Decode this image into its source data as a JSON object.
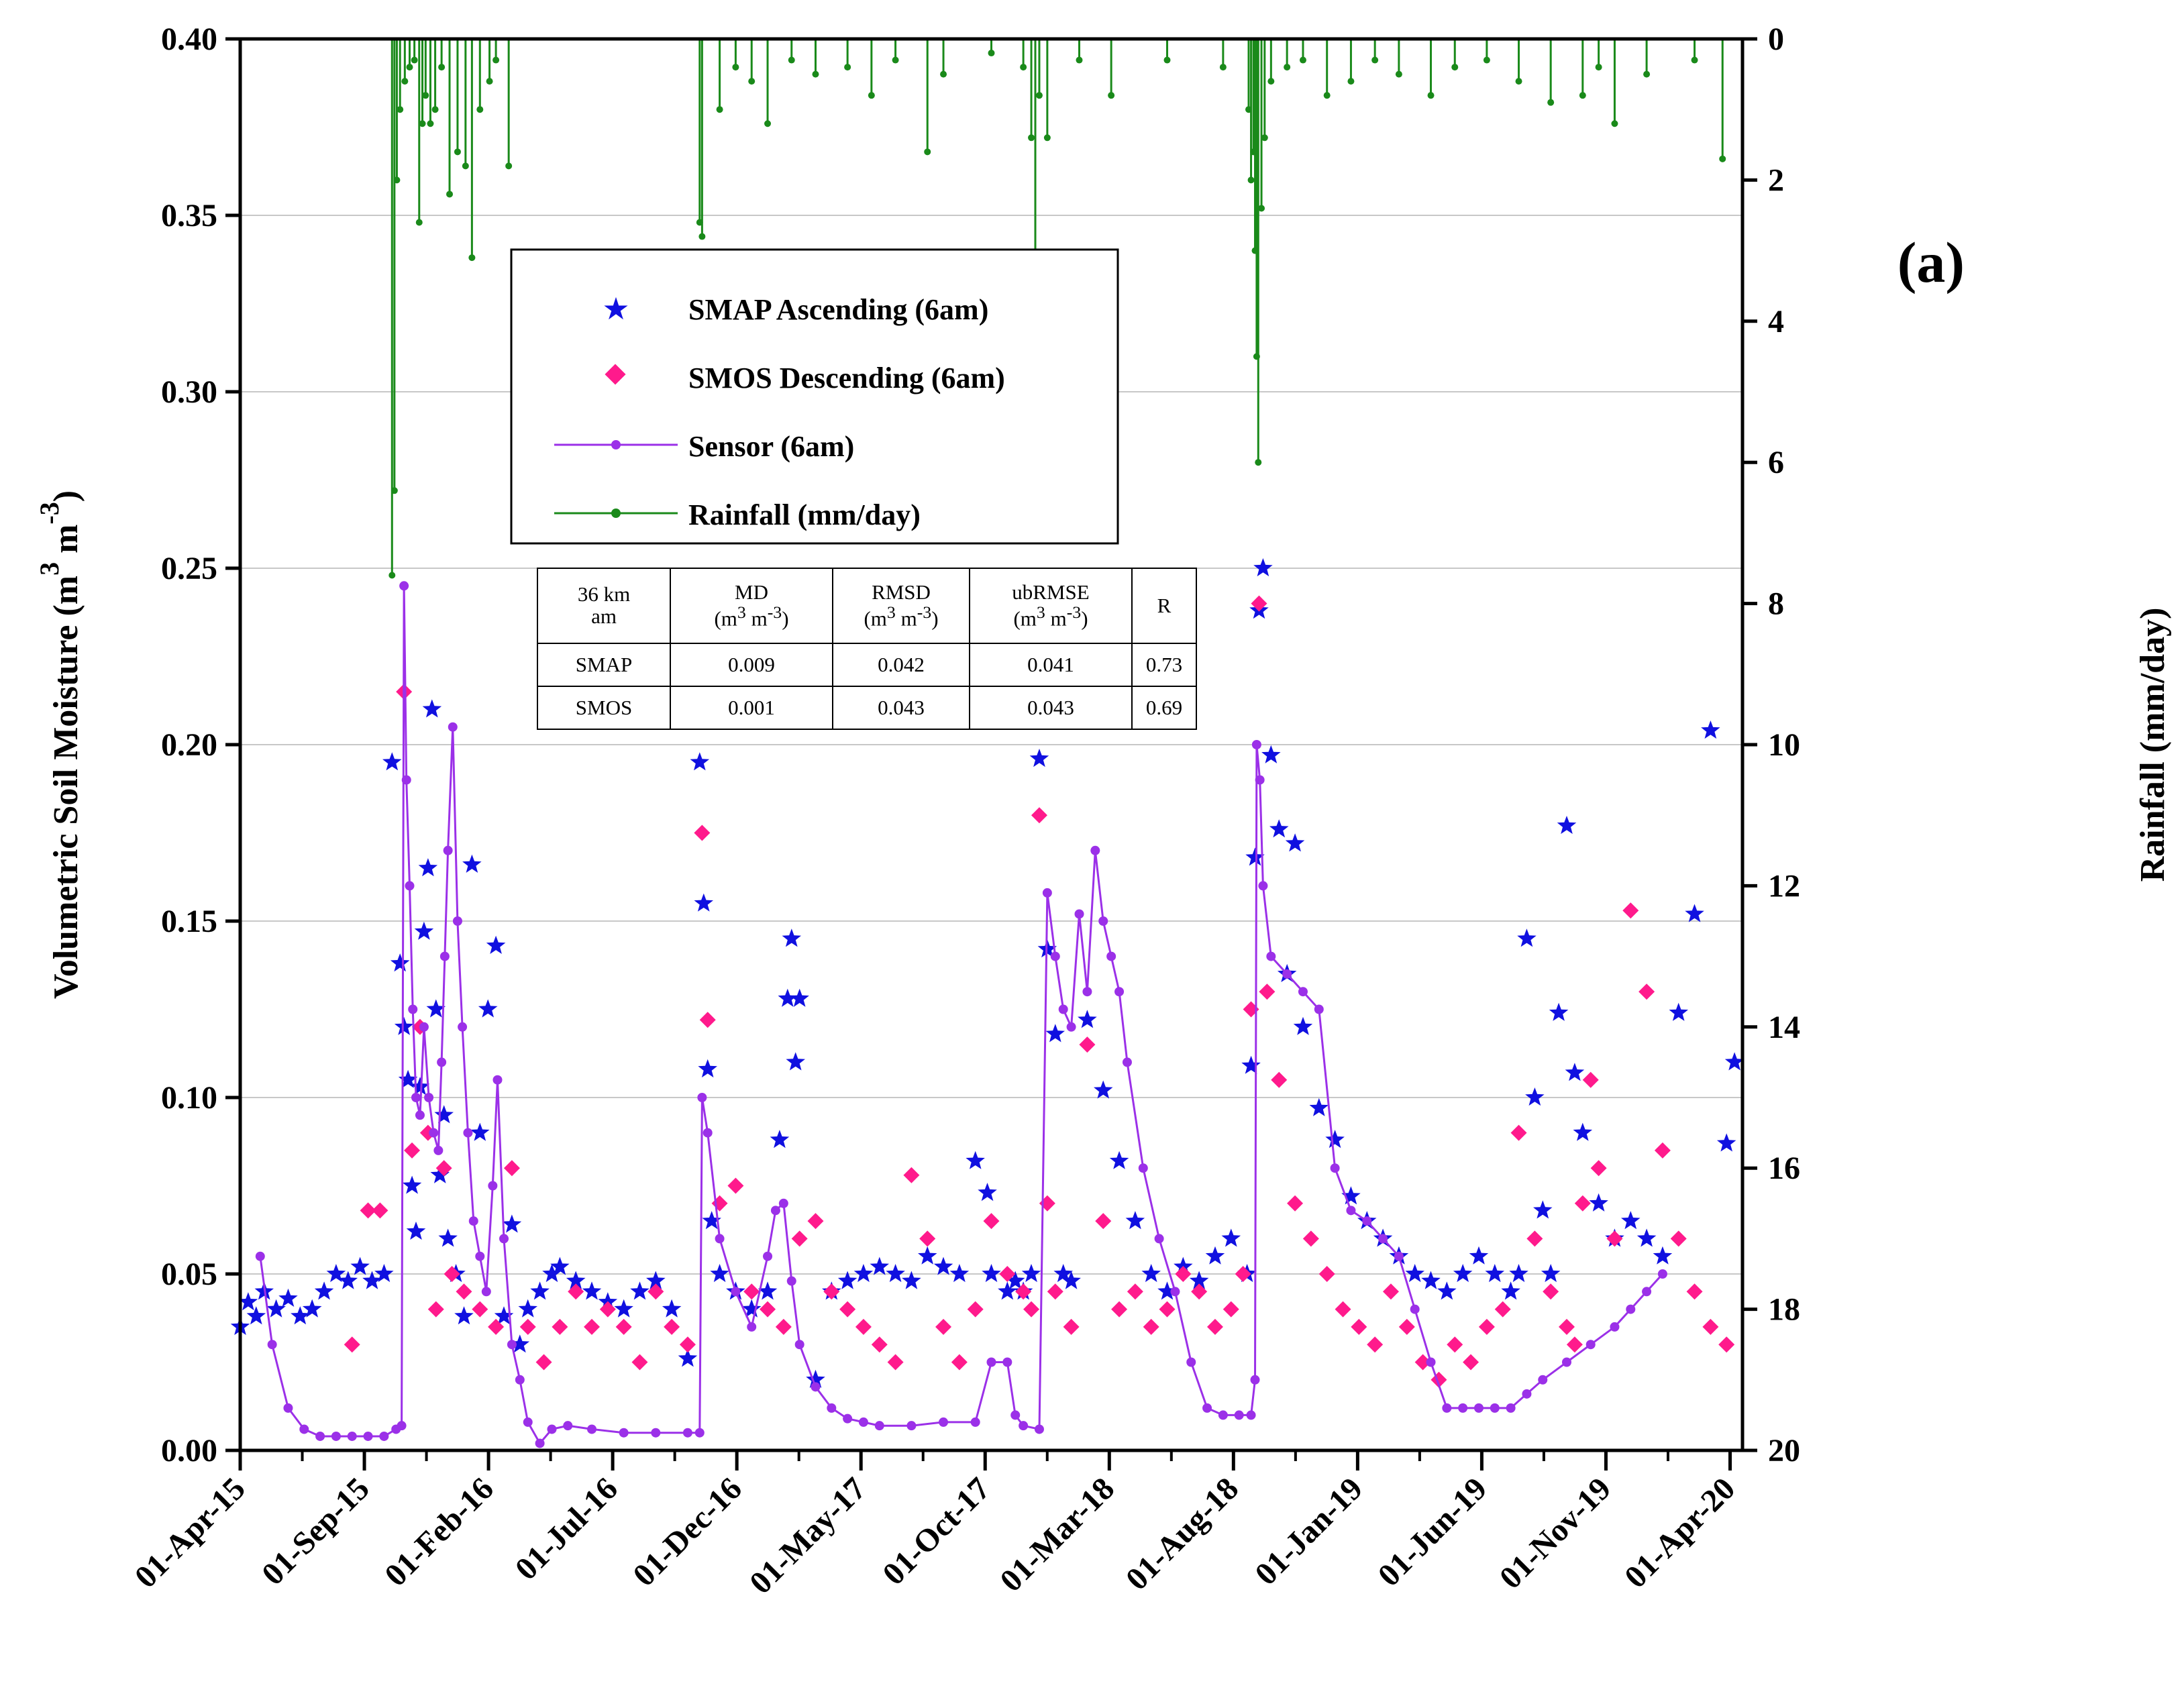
{
  "chart_data": {
    "type": "scatter",
    "panel_label": "(a)",
    "ylabel": "Volumetric Soil Moisture (m",
    "ylabel_sup_3": "3",
    "ylabel_mid": " m",
    "ylabel_sup_neg3": "-3",
    "ylabel_close": ")",
    "y2label": "Rainfall (mm/day)",
    "ylim": [
      0,
      0.4
    ],
    "y2lim": [
      0,
      20
    ],
    "y_ticks": [
      "0.00",
      "0.05",
      "0.10",
      "0.15",
      "0.20",
      "0.25",
      "0.30",
      "0.35",
      "0.40"
    ],
    "y2_ticks": [
      "0",
      "2",
      "4",
      "6",
      "8",
      "10",
      "12",
      "14",
      "16",
      "18",
      "20"
    ],
    "x_tick_labels": [
      "01-Apr-15",
      "01-Sep-15",
      "01-Feb-16",
      "01-Jul-16",
      "01-Dec-16",
      "01-May-17",
      "01-Oct-17",
      "01-Mar-18",
      "01-Aug-18",
      "01-Jan-19",
      "01-Jun-19",
      "01-Nov-19",
      "01-Apr-20"
    ],
    "x_range_days": [
      0,
      1880
    ],
    "grid": "horizontal",
    "legend_position": "upper-left",
    "legend": [
      {
        "label": "SMAP Ascending (6am)",
        "marker": "star",
        "color": "#1010e0"
      },
      {
        "label": "SMOS Descending (6am)",
        "marker": "diamond",
        "color": "#ff1a8c"
      },
      {
        "label": "Sensor (6am)",
        "marker": "line-dot",
        "color": "#9b30e8"
      },
      {
        "label": "Rainfall (mm/day)",
        "marker": "line-dot",
        "color": "#1a8a1a"
      }
    ],
    "series": [
      {
        "name": "SMAP Ascending (6am)",
        "color": "#1010e0",
        "axis": "left",
        "marker": "star",
        "x_days": [
          0,
          10,
          20,
          30,
          45,
          60,
          75,
          90,
          105,
          120,
          135,
          150,
          165,
          180,
          190,
          200,
          205,
          210,
          215,
          220,
          225,
          230,
          235,
          240,
          245,
          250,
          255,
          260,
          270,
          280,
          290,
          300,
          310,
          320,
          330,
          340,
          350,
          360,
          375,
          390,
          400,
          420,
          440,
          460,
          480,
          500,
          520,
          540,
          560,
          575,
          580,
          585,
          590,
          600,
          620,
          640,
          660,
          675,
          685,
          690,
          695,
          700,
          720,
          740,
          760,
          780,
          800,
          820,
          840,
          860,
          880,
          900,
          920,
          935,
          940,
          960,
          970,
          980,
          990,
          1000,
          1010,
          1020,
          1030,
          1040,
          1060,
          1080,
          1100,
          1120,
          1140,
          1160,
          1180,
          1200,
          1220,
          1240,
          1260,
          1265,
          1270,
          1275,
          1280,
          1290,
          1300,
          1310,
          1320,
          1330,
          1350,
          1370,
          1390,
          1410,
          1430,
          1450,
          1470,
          1490,
          1510,
          1530,
          1550,
          1570,
          1590,
          1600,
          1610,
          1620,
          1630,
          1640,
          1650,
          1660,
          1670,
          1680,
          1700,
          1720,
          1740,
          1760,
          1780,
          1800,
          1820,
          1840,
          1860,
          1870
        ],
        "values": [
          0.035,
          0.042,
          0.038,
          0.045,
          0.04,
          0.043,
          0.038,
          0.04,
          0.045,
          0.05,
          0.048,
          0.052,
          0.048,
          0.05,
          0.195,
          0.138,
          0.12,
          0.105,
          0.075,
          0.062,
          0.103,
          0.147,
          0.165,
          0.21,
          0.125,
          0.078,
          0.095,
          0.06,
          0.05,
          0.038,
          0.166,
          0.09,
          0.125,
          0.143,
          0.038,
          0.064,
          0.03,
          0.04,
          0.045,
          0.05,
          0.052,
          0.048,
          0.045,
          0.042,
          0.04,
          0.045,
          0.048,
          0.04,
          0.026,
          0.195,
          0.155,
          0.108,
          0.065,
          0.05,
          0.045,
          0.04,
          0.045,
          0.088,
          0.128,
          0.145,
          0.11,
          0.128,
          0.02,
          0.045,
          0.048,
          0.05,
          0.052,
          0.05,
          0.048,
          0.055,
          0.052,
          0.05,
          0.082,
          0.073,
          0.05,
          0.045,
          0.048,
          0.045,
          0.05,
          0.196,
          0.142,
          0.118,
          0.05,
          0.048,
          0.122,
          0.102,
          0.082,
          0.065,
          0.05,
          0.045,
          0.052,
          0.048,
          0.055,
          0.06,
          0.05,
          0.109,
          0.168,
          0.238,
          0.25,
          0.197,
          0.176,
          0.135,
          0.172,
          0.12,
          0.097,
          0.088,
          0.072,
          0.065,
          0.06,
          0.055,
          0.05,
          0.048,
          0.045,
          0.05,
          0.055,
          0.05,
          0.045,
          0.05,
          0.145,
          0.1,
          0.068,
          0.05,
          0.124,
          0.177,
          0.107,
          0.09,
          0.07,
          0.06,
          0.065,
          0.06,
          0.055,
          0.124,
          0.152,
          0.204,
          0.087,
          0.11
        ]
      },
      {
        "name": "SMOS Descending (6am)",
        "color": "#ff1a8c",
        "axis": "left",
        "marker": "diamond",
        "x_days": [
          140,
          160,
          175,
          205,
          215,
          225,
          235,
          245,
          255,
          265,
          280,
          300,
          320,
          340,
          360,
          380,
          400,
          420,
          440,
          460,
          480,
          500,
          520,
          540,
          560,
          578,
          585,
          600,
          620,
          640,
          660,
          680,
          700,
          720,
          740,
          760,
          780,
          800,
          820,
          840,
          860,
          880,
          900,
          920,
          940,
          960,
          980,
          990,
          1000,
          1010,
          1020,
          1040,
          1060,
          1080,
          1100,
          1120,
          1140,
          1160,
          1180,
          1200,
          1220,
          1240,
          1255,
          1265,
          1275,
          1285,
          1300,
          1320,
          1340,
          1360,
          1380,
          1400,
          1420,
          1440,
          1460,
          1480,
          1500,
          1520,
          1540,
          1560,
          1580,
          1600,
          1620,
          1640,
          1660,
          1670,
          1680,
          1690,
          1700,
          1720,
          1740,
          1760,
          1780,
          1800,
          1820,
          1840,
          1860
        ],
        "values": [
          0.03,
          0.068,
          0.068,
          0.215,
          0.085,
          0.12,
          0.09,
          0.04,
          0.08,
          0.05,
          0.045,
          0.04,
          0.035,
          0.08,
          0.035,
          0.025,
          0.035,
          0.045,
          0.035,
          0.04,
          0.035,
          0.025,
          0.045,
          0.035,
          0.03,
          0.175,
          0.122,
          0.07,
          0.075,
          0.045,
          0.04,
          0.035,
          0.06,
          0.065,
          0.045,
          0.04,
          0.035,
          0.03,
          0.025,
          0.078,
          0.06,
          0.035,
          0.025,
          0.04,
          0.065,
          0.05,
          0.045,
          0.04,
          0.18,
          0.07,
          0.045,
          0.035,
          0.115,
          0.065,
          0.04,
          0.045,
          0.035,
          0.04,
          0.05,
          0.045,
          0.035,
          0.04,
          0.05,
          0.125,
          0.24,
          0.13,
          0.105,
          0.07,
          0.06,
          0.05,
          0.04,
          0.035,
          0.03,
          0.045,
          0.035,
          0.025,
          0.02,
          0.03,
          0.025,
          0.035,
          0.04,
          0.09,
          0.06,
          0.045,
          0.035,
          0.03,
          0.07,
          0.105,
          0.08,
          0.06,
          0.153,
          0.13,
          0.085,
          0.06,
          0.045,
          0.035,
          0.03
        ]
      },
      {
        "name": "Sensor (6am)",
        "color": "#9b30e8",
        "axis": "left",
        "marker": "line-dot",
        "x_days": [
          25,
          40,
          60,
          80,
          100,
          120,
          140,
          160,
          180,
          195,
          202,
          205,
          208,
          212,
          216,
          220,
          225,
          230,
          236,
          242,
          248,
          252,
          256,
          260,
          266,
          272,
          278,
          285,
          292,
          300,
          308,
          316,
          322,
          330,
          340,
          350,
          360,
          375,
          390,
          410,
          440,
          480,
          520,
          560,
          575,
          578,
          585,
          600,
          620,
          640,
          660,
          670,
          680,
          690,
          700,
          720,
          740,
          760,
          780,
          800,
          840,
          880,
          920,
          940,
          960,
          970,
          980,
          1000,
          1010,
          1020,
          1030,
          1040,
          1050,
          1060,
          1070,
          1080,
          1090,
          1100,
          1110,
          1130,
          1150,
          1170,
          1190,
          1210,
          1230,
          1250,
          1265,
          1270,
          1272,
          1276,
          1280,
          1290,
          1310,
          1330,
          1350,
          1370,
          1390,
          1410,
          1430,
          1450,
          1470,
          1490,
          1510,
          1530,
          1550,
          1570,
          1590,
          1610,
          1630,
          1660,
          1690,
          1720,
          1740,
          1760,
          1780
        ],
        "values": [
          0.055,
          0.03,
          0.012,
          0.006,
          0.004,
          0.004,
          0.004,
          0.004,
          0.004,
          0.006,
          0.007,
          0.245,
          0.19,
          0.16,
          0.125,
          0.1,
          0.095,
          0.12,
          0.1,
          0.09,
          0.085,
          0.11,
          0.14,
          0.17,
          0.205,
          0.15,
          0.12,
          0.09,
          0.065,
          0.055,
          0.045,
          0.075,
          0.105,
          0.06,
          0.03,
          0.02,
          0.008,
          0.002,
          0.006,
          0.007,
          0.006,
          0.005,
          0.005,
          0.005,
          0.005,
          0.1,
          0.09,
          0.06,
          0.045,
          0.035,
          0.055,
          0.068,
          0.07,
          0.048,
          0.03,
          0.018,
          0.012,
          0.009,
          0.008,
          0.007,
          0.007,
          0.008,
          0.008,
          0.025,
          0.025,
          0.01,
          0.007,
          0.006,
          0.158,
          0.14,
          0.125,
          0.12,
          0.152,
          0.13,
          0.17,
          0.15,
          0.14,
          0.13,
          0.11,
          0.08,
          0.06,
          0.045,
          0.025,
          0.012,
          0.01,
          0.01,
          0.01,
          0.02,
          0.2,
          0.19,
          0.16,
          0.14,
          0.135,
          0.13,
          0.125,
          0.08,
          0.068,
          0.065,
          0.06,
          0.055,
          0.04,
          0.025,
          0.012,
          0.012,
          0.012,
          0.012,
          0.012,
          0.016,
          0.02,
          0.025,
          0.03,
          0.035,
          0.04,
          0.045,
          0.05
        ]
      },
      {
        "name": "Rainfall (mm/day)",
        "color": "#1a8a1a",
        "axis": "right",
        "marker": "line-dot",
        "x_days": [
          190,
          193,
          196,
          200,
          206,
          212,
          218,
          224,
          228,
          232,
          238,
          244,
          252,
          262,
          272,
          282,
          290,
          300,
          312,
          320,
          336,
          575,
          578,
          600,
          620,
          640,
          660,
          690,
          720,
          760,
          790,
          820,
          860,
          880,
          940,
          980,
          990,
          995,
          1000,
          1010,
          1050,
          1090,
          1160,
          1230,
          1262,
          1265,
          1268,
          1270,
          1272,
          1274,
          1278,
          1282,
          1290,
          1310,
          1330,
          1360,
          1390,
          1420,
          1450,
          1490,
          1520,
          1560,
          1600,
          1640,
          1680,
          1700,
          1720,
          1760,
          1820,
          1855
        ],
        "values": [
          7.6,
          6.4,
          2.0,
          1.0,
          0.6,
          0.4,
          0.3,
          2.6,
          1.2,
          0.8,
          1.2,
          1.0,
          0.4,
          2.2,
          1.6,
          1.8,
          3.1,
          1.0,
          0.6,
          0.3,
          1.8,
          2.6,
          2.8,
          1.0,
          0.4,
          0.6,
          1.2,
          0.3,
          0.5,
          0.4,
          0.8,
          0.3,
          1.6,
          0.5,
          0.2,
          0.4,
          1.4,
          3.5,
          0.8,
          1.4,
          0.3,
          0.8,
          0.3,
          0.4,
          1.0,
          2.0,
          1.6,
          3.0,
          4.5,
          6.0,
          2.4,
          1.4,
          0.6,
          0.4,
          0.3,
          0.8,
          0.6,
          0.3,
          0.5,
          0.8,
          0.4,
          0.3,
          0.6,
          0.9,
          0.8,
          0.4,
          1.2,
          0.5,
          0.3,
          1.7
        ]
      }
    ]
  },
  "stats_table": {
    "header": {
      "c1_line1": "36 km",
      "c1_line2": "am",
      "c2_line1": "MD",
      "c2_unit_a": "(m",
      "c2_sup1": "3",
      "c2_unit_b": " m",
      "c2_sup2": "-3",
      "c2_unit_c": ")",
      "c3_line1": "RMSD",
      "c3_unit_a": "(m",
      "c3_sup1": "3",
      "c3_unit_b": " m",
      "c3_sup2": "-3",
      "c3_unit_c": ")",
      "c4_line1": "ubRMSE",
      "c4_unit_a": "(m",
      "c4_sup1": "3",
      "c4_unit_b": " m",
      "c4_sup2": "-3",
      "c4_unit_c": ")",
      "c5": "R"
    },
    "rows": [
      {
        "name": "SMAP",
        "md": "0.009",
        "rmsd": "0.042",
        "ubrmse": "0.041",
        "r": "0.73"
      },
      {
        "name": "SMOS",
        "md": "0.001",
        "rmsd": "0.043",
        "ubrmse": "0.043",
        "r": "0.69"
      }
    ]
  }
}
